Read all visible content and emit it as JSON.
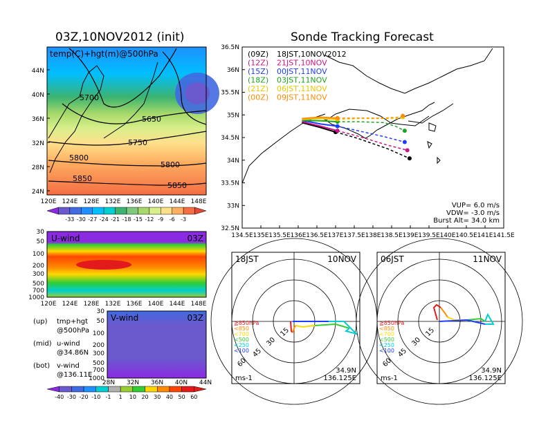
{
  "left_title": "03Z,10NOV2012 (init)",
  "right_title": "Sonde Tracking Forecast",
  "colors": {
    "bg": "#ffffff",
    "ocean_palette": [
      "#8a2be2",
      "#6a5acd",
      "#4169e1",
      "#1e90ff",
      "#00bfff",
      "#00ced1",
      "#3cb371",
      "#7fc97f",
      "#a6d96a",
      "#d9ef8b",
      "#fee08b",
      "#fdae61",
      "#f46d43",
      "#e34a33"
    ],
    "wind_palette": [
      "#8a2be2",
      "#6a5acd",
      "#4169e1",
      "#1e90ff",
      "#00ced1",
      "#b0b0b0",
      "#9acd32",
      "#32cd32",
      "#ffd700",
      "#ff8c00",
      "#ff4500",
      "#e31a1c"
    ]
  },
  "map500": {
    "label": "temp(C)+hgt(m)@500hPa",
    "lat_ticks": [
      "24N",
      "28N",
      "32N",
      "36N",
      "40N",
      "44N"
    ],
    "lon_ticks": [
      "120E",
      "124E",
      "128E",
      "132E",
      "136E",
      "140E",
      "144E",
      "148E"
    ],
    "contour_labels": [
      "5700",
      "5650",
      "5750",
      "5800",
      "5800",
      "5850",
      "5850"
    ],
    "colorbar_ticks": [
      "-33",
      "-30",
      "-27",
      "-24",
      "-21",
      "-18",
      "-15",
      "-12",
      "-9",
      "-6",
      "-3"
    ]
  },
  "uwind": {
    "label": "U-wind",
    "time": "03Z",
    "p_ticks": [
      "30",
      "50",
      "100",
      "200",
      "300",
      "500",
      "700",
      "1000"
    ],
    "lon_ticks": [
      "120E",
      "124E",
      "128E",
      "132E",
      "136E",
      "140E",
      "144E",
      "148E"
    ]
  },
  "vwind": {
    "label": "V-wind",
    "time": "03Z",
    "p_ticks": [
      "30",
      "50",
      "100",
      "200",
      "300",
      "500",
      "700",
      "1000"
    ],
    "lat_ticks": [
      "28N",
      "32N",
      "36N",
      "40N",
      "44N"
    ],
    "colorbar_ticks": [
      "-40",
      "-30",
      "-20",
      "-10",
      "-1",
      "1",
      "10",
      "20",
      "30",
      "40",
      "50",
      "60"
    ]
  },
  "legend_notes": [
    {
      "k": "(up)",
      "a": "tmp+hgt",
      "b": "@500hPa"
    },
    {
      "k": "(mid)",
      "a": "u-wind",
      "b": "@34.86N"
    },
    {
      "k": "(bot)",
      "a": "v-wind",
      "b": "@136.11E"
    }
  ],
  "track": {
    "lat_ticks": [
      "36.5N",
      "36N",
      "35.5N",
      "35N",
      "34.5N",
      "34N",
      "33.5N",
      "33N",
      "32.5N"
    ],
    "lon_ticks": [
      "134.5E",
      "135E",
      "135.5E",
      "136E",
      "136.5E",
      "137E",
      "137.5E",
      "138E",
      "138.5E",
      "139E",
      "139.5E",
      "140E",
      "140.5E",
      "141E",
      "141.5E"
    ],
    "runs": [
      {
        "code": "(09Z)",
        "desc": "18JST,10NOV2012",
        "color": "#000000"
      },
      {
        "code": "(12Z)",
        "desc": "21JST,10NOV",
        "color": "#c71585"
      },
      {
        "code": "(15Z)",
        "desc": "00JST,11NOV",
        "color": "#1e3cff"
      },
      {
        "code": "(18Z)",
        "desc": "03JST,11NOV",
        "color": "#1fa21f"
      },
      {
        "code": "(21Z)",
        "desc": "06JST,11NOV",
        "color": "#e8c800"
      },
      {
        "code": "(00Z)",
        "desc": "09JST,11NOV",
        "color": "#ff8c00"
      }
    ],
    "params": [
      "VUP= 6.0 m/s",
      "VDW= -3.0 m/s",
      "Burst Alt= 34.0 km"
    ]
  },
  "hodo_left": {
    "left_label": "18JST",
    "right_label": "10NOV",
    "ring_labels": [
      "15",
      "30",
      "45",
      "60"
    ],
    "unit": "ms-1",
    "lat": "34.9N",
    "lon": "136.125E"
  },
  "hodo_right": {
    "left_label": "06JST",
    "right_label": "11NOV",
    "ring_labels": [
      "15",
      "30",
      "45",
      "60"
    ],
    "unit": "ms-1",
    "lat": "34.9N",
    "lon": "136.125E"
  },
  "hodo_key": [
    {
      "label": "≧850hPa",
      "color": "#e31a1c"
    },
    {
      "label": "<850",
      "color": "#ff8c00"
    },
    {
      "label": "<700",
      "color": "#ffd700"
    },
    {
      "label": "<500",
      "color": "#32cd32"
    },
    {
      "label": "<250",
      "color": "#00ced1"
    },
    {
      "label": "<100",
      "color": "#1e3cff"
    }
  ],
  "chart_data": [
    {
      "type": "heatmap",
      "title": "03Z,10NOV2012 (init)",
      "subtitle": "temp(C)+hgt(m)@500hPa",
      "x_ticks": [
        "120E",
        "124E",
        "128E",
        "132E",
        "136E",
        "140E",
        "144E",
        "148E"
      ],
      "y_ticks": [
        "24N",
        "28N",
        "32N",
        "36N",
        "40N",
        "44N"
      ],
      "contour_labels": [
        5700,
        5650,
        5750,
        5800,
        5800,
        5850,
        5850
      ]
    },
    {
      "type": "heatmap",
      "title": "U-wind 03Z",
      "xlabel": "",
      "ylabel": "",
      "x_ticks": [
        "120E",
        "124E",
        "128E",
        "132E",
        "136E",
        "140E",
        "144E",
        "148E"
      ],
      "y_ticks": [
        "30",
        "50",
        "100",
        "200",
        "300",
        "500",
        "700",
        "1000"
      ]
    },
    {
      "type": "heatmap",
      "title": "V-wind 03Z",
      "x_ticks": [
        "28N",
        "32N",
        "36N",
        "40N",
        "44N"
      ],
      "y_ticks": [
        "30",
        "50",
        "100",
        "200",
        "300",
        "500",
        "700",
        "1000"
      ]
    },
    {
      "type": "line",
      "title": "Sonde Tracking Forecast",
      "xlim": [
        134.5,
        141.5
      ],
      "ylim": [
        32.5,
        36.5
      ],
      "series": [
        {
          "name": "(09Z) 18JST,10NOV2012",
          "points": [
            [
              136.1,
              34.83
            ],
            [
              136.6,
              34.72
            ],
            [
              137.0,
              34.62
            ],
            [
              137.1,
              34.6
            ],
            [
              137.6,
              34.48
            ],
            [
              138.4,
              34.25
            ],
            [
              138.98,
              34.04
            ]
          ]
        },
        {
          "name": "(12Z) 21JST,10NOV",
          "points": [
            [
              136.1,
              34.85
            ],
            [
              136.6,
              34.75
            ],
            [
              137.05,
              34.65
            ],
            [
              137.6,
              34.53
            ],
            [
              138.4,
              34.33
            ],
            [
              138.92,
              34.22
            ]
          ]
        },
        {
          "name": "(15Z) 00JST,11NOV",
          "points": [
            [
              136.1,
              34.88
            ],
            [
              136.6,
              34.8
            ],
            [
              137.05,
              34.75
            ],
            [
              137.6,
              34.65
            ],
            [
              138.3,
              34.52
            ],
            [
              138.85,
              34.4
            ]
          ]
        },
        {
          "name": "(18Z) 03JST,11NOV",
          "points": [
            [
              136.1,
              34.88
            ],
            [
              136.6,
              34.87
            ],
            [
              137.05,
              34.85
            ],
            [
              137.6,
              34.85
            ],
            [
              138.3,
              34.83
            ],
            [
              138.6,
              34.75
            ],
            [
              138.85,
              34.65
            ]
          ]
        },
        {
          "name": "(21Z) 06JST,11NOV",
          "points": [
            [
              136.1,
              34.9
            ],
            [
              136.6,
              34.92
            ],
            [
              137.05,
              34.9
            ],
            [
              137.6,
              34.92
            ],
            [
              138.3,
              34.92
            ],
            [
              138.72,
              34.92
            ],
            [
              138.8,
              34.95
            ]
          ]
        },
        {
          "name": "(00Z) 09JST,11NOV",
          "points": [
            [
              136.1,
              34.92
            ],
            [
              136.6,
              34.95
            ],
            [
              137.05,
              34.93
            ],
            [
              137.6,
              34.93
            ],
            [
              138.3,
              34.93
            ],
            [
              138.72,
              34.95
            ],
            [
              138.8,
              34.98
            ]
          ]
        }
      ],
      "params": [
        "VUP= 6.0 m/s",
        "VDW= -3.0 m/s",
        "Burst Alt= 34.0 km"
      ]
    }
  ]
}
